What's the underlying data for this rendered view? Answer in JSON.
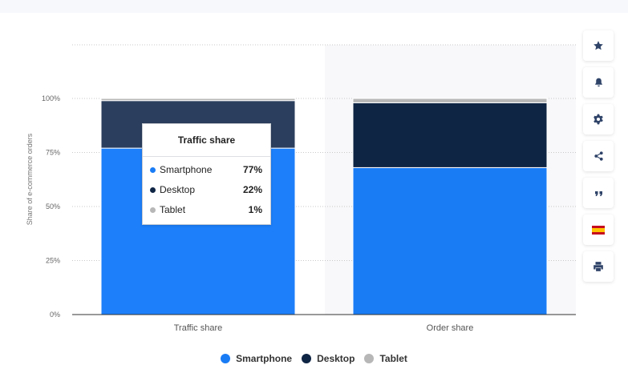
{
  "chart_data": {
    "type": "bar",
    "stacked": true,
    "categories": [
      "Traffic share",
      "Order share"
    ],
    "series": [
      {
        "name": "Smartphone",
        "values": [
          77,
          68
        ]
      },
      {
        "name": "Desktop",
        "values": [
          22,
          30
        ]
      },
      {
        "name": "Tablet",
        "values": [
          1,
          2
        ]
      }
    ],
    "ylabel": "Share of e-commerce orders",
    "xlabel": "",
    "ylim": [
      0,
      100
    ],
    "yticks": [
      "0%",
      "25%",
      "50%",
      "75%",
      "100%"
    ],
    "grid": true,
    "legend": "bottom-center"
  },
  "colors": {
    "smartphone": "#1a7cf5",
    "desktop": "#0f2544",
    "tablet": "#b7b7b7",
    "smartphone_hover": "#1d7ffa",
    "desktop_hover": "#2b3e5d"
  },
  "tooltip": {
    "title": "Traffic share",
    "rows": [
      {
        "name": "Smartphone",
        "value": "77%"
      },
      {
        "name": "Desktop",
        "value": "22%"
      },
      {
        "name": "Tablet",
        "value": "1%"
      }
    ]
  },
  "sidebar": {
    "icons": [
      "star-icon",
      "bell-icon",
      "gear-icon",
      "share-icon",
      "quote-icon",
      "flag-spain-icon",
      "print-icon"
    ]
  }
}
